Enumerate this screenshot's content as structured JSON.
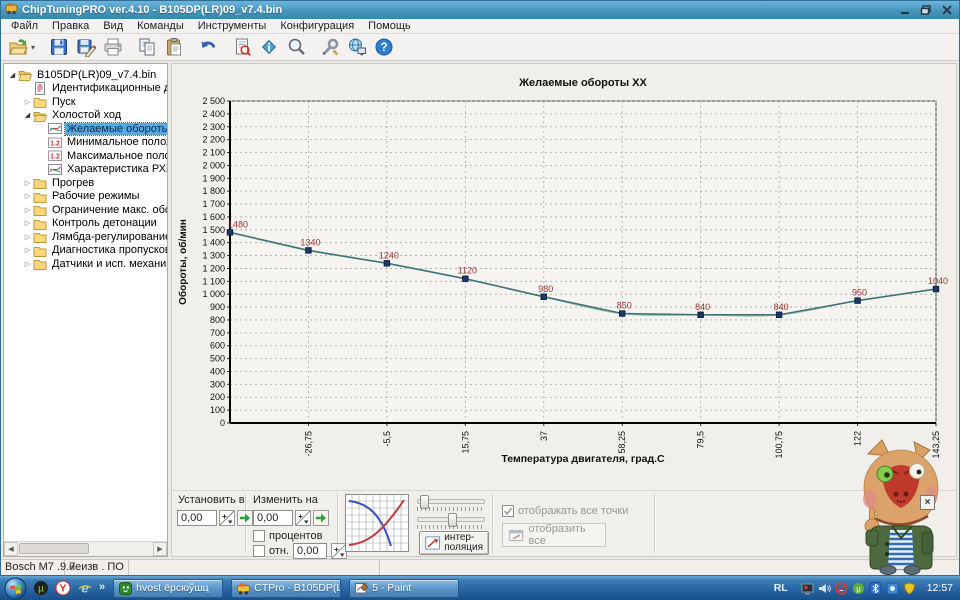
{
  "window": {
    "title": "ChipTuningPRO ver.4.10 - B105DP(LR)09_v7.4.bin"
  },
  "menu": {
    "items": [
      "Файл",
      "Правка",
      "Вид",
      "Команды",
      "Инструменты",
      "Конфигурация",
      "Помощь"
    ]
  },
  "toolbar": {
    "icons": [
      "open",
      "save",
      "save-as",
      "print",
      "copy",
      "paste",
      "undo",
      "report",
      "info",
      "search",
      "tools",
      "network",
      "help"
    ]
  },
  "tree": {
    "items": [
      {
        "label": "B105DP(LR)09_v7.4.bin",
        "level": 0,
        "icon": "folder-open",
        "exp": "open",
        "selected": false
      },
      {
        "label": "Идентификационные данные",
        "level": 1,
        "icon": "doc",
        "exp": "none",
        "selected": false
      },
      {
        "label": "Пуск",
        "level": 1,
        "icon": "folder",
        "exp": "closed",
        "selected": false
      },
      {
        "label": "Холостой ход",
        "level": 1,
        "icon": "folder-open",
        "exp": "open",
        "selected": false
      },
      {
        "label": "Желаемые обороты ХХ",
        "level": 2,
        "icon": "chart",
        "exp": "none",
        "selected": true
      },
      {
        "label": "Минимальное положение",
        "level": 2,
        "icon": "num",
        "exp": "none",
        "selected": false
      },
      {
        "label": "Максимальное положение",
        "level": 2,
        "icon": "num",
        "exp": "none",
        "selected": false
      },
      {
        "label": "Характеристика РХХ",
        "level": 2,
        "icon": "chart",
        "exp": "none",
        "selected": false
      },
      {
        "label": "Прогрев",
        "level": 1,
        "icon": "folder",
        "exp": "closed",
        "selected": false
      },
      {
        "label": "Рабочие режимы",
        "level": 1,
        "icon": "folder",
        "exp": "closed",
        "selected": false
      },
      {
        "label": "Ограничение макс. оборотов",
        "level": 1,
        "icon": "folder",
        "exp": "closed",
        "selected": false
      },
      {
        "label": "Контроль детонации",
        "level": 1,
        "icon": "folder",
        "exp": "closed",
        "selected": false
      },
      {
        "label": "Лямбда-регулирование",
        "level": 1,
        "icon": "folder",
        "exp": "closed",
        "selected": false
      },
      {
        "label": "Диагностика пропусков воспл",
        "level": 1,
        "icon": "folder",
        "exp": "closed",
        "selected": false
      },
      {
        "label": "Датчики и исп. механизмы",
        "level": 1,
        "icon": "folder",
        "exp": "closed",
        "selected": false
      }
    ]
  },
  "chart_data": {
    "type": "line",
    "title": "Желаемые обороты ХХ",
    "xlabel": "Температура двигателя, град.С",
    "ylabel": "Обороты, об/мин",
    "x": [
      -48,
      -26.75,
      -5.5,
      15.75,
      37,
      58.25,
      79.5,
      100.75,
      122,
      143.25
    ],
    "x_tick_labels": [
      "-26,75",
      "-5,5",
      "15,75",
      "37",
      "58,25",
      "79,5",
      "100,75",
      "122",
      "143,25"
    ],
    "values": [
      1480,
      1340,
      1240,
      1120,
      980,
      850,
      840,
      840,
      950,
      1040
    ],
    "point_labels": [
      "1480",
      "1340",
      "1240",
      "1120",
      "980",
      "850",
      "840",
      "840",
      "950",
      "1040"
    ],
    "ylim": [
      0,
      2500
    ],
    "ytick_step": 100,
    "grid": true,
    "legend": "none",
    "colors": {
      "line": "#3c7177",
      "smooth": "#9cc3ad",
      "point": "#1c3a66",
      "label": "#9c3430"
    }
  },
  "controls": {
    "set_to_label": "Установить в",
    "set_to_value": "0,00",
    "change_by_label": "Изменить на",
    "change_by_value": "0,00",
    "percent_label": "процентов",
    "percent_checked": false,
    "rel_label": "отн.",
    "rel_checked": false,
    "rel_value": "0,00",
    "interp_line1": "интер-",
    "interp_line2": "поляция",
    "show_all_points_label": "отображать все точки",
    "show_all_points_checked": true,
    "show_all_button_label": "отобразить все"
  },
  "status_bar": {
    "left": "Bosch M7 .9.7",
    "right": "неизв . ПО"
  },
  "taskbar": {
    "quick_launch": [
      "utorrent",
      "yandex",
      "ie"
    ],
    "chevron": "»",
    "tasks": [
      {
        "icon": "app-green",
        "label": "hvost ёрсюўшц"
      },
      {
        "icon": "ctpro",
        "label": "CTPro - B105DP(LR)09..."
      },
      {
        "icon": "paint",
        "label": "5 - Paint"
      }
    ],
    "tray_lang": "RL",
    "tray_icons": [
      "display",
      "volume",
      "no-network",
      "utorrent-tray",
      "bluetooth",
      "blue-app",
      "shield"
    ],
    "clock": "12:57"
  }
}
